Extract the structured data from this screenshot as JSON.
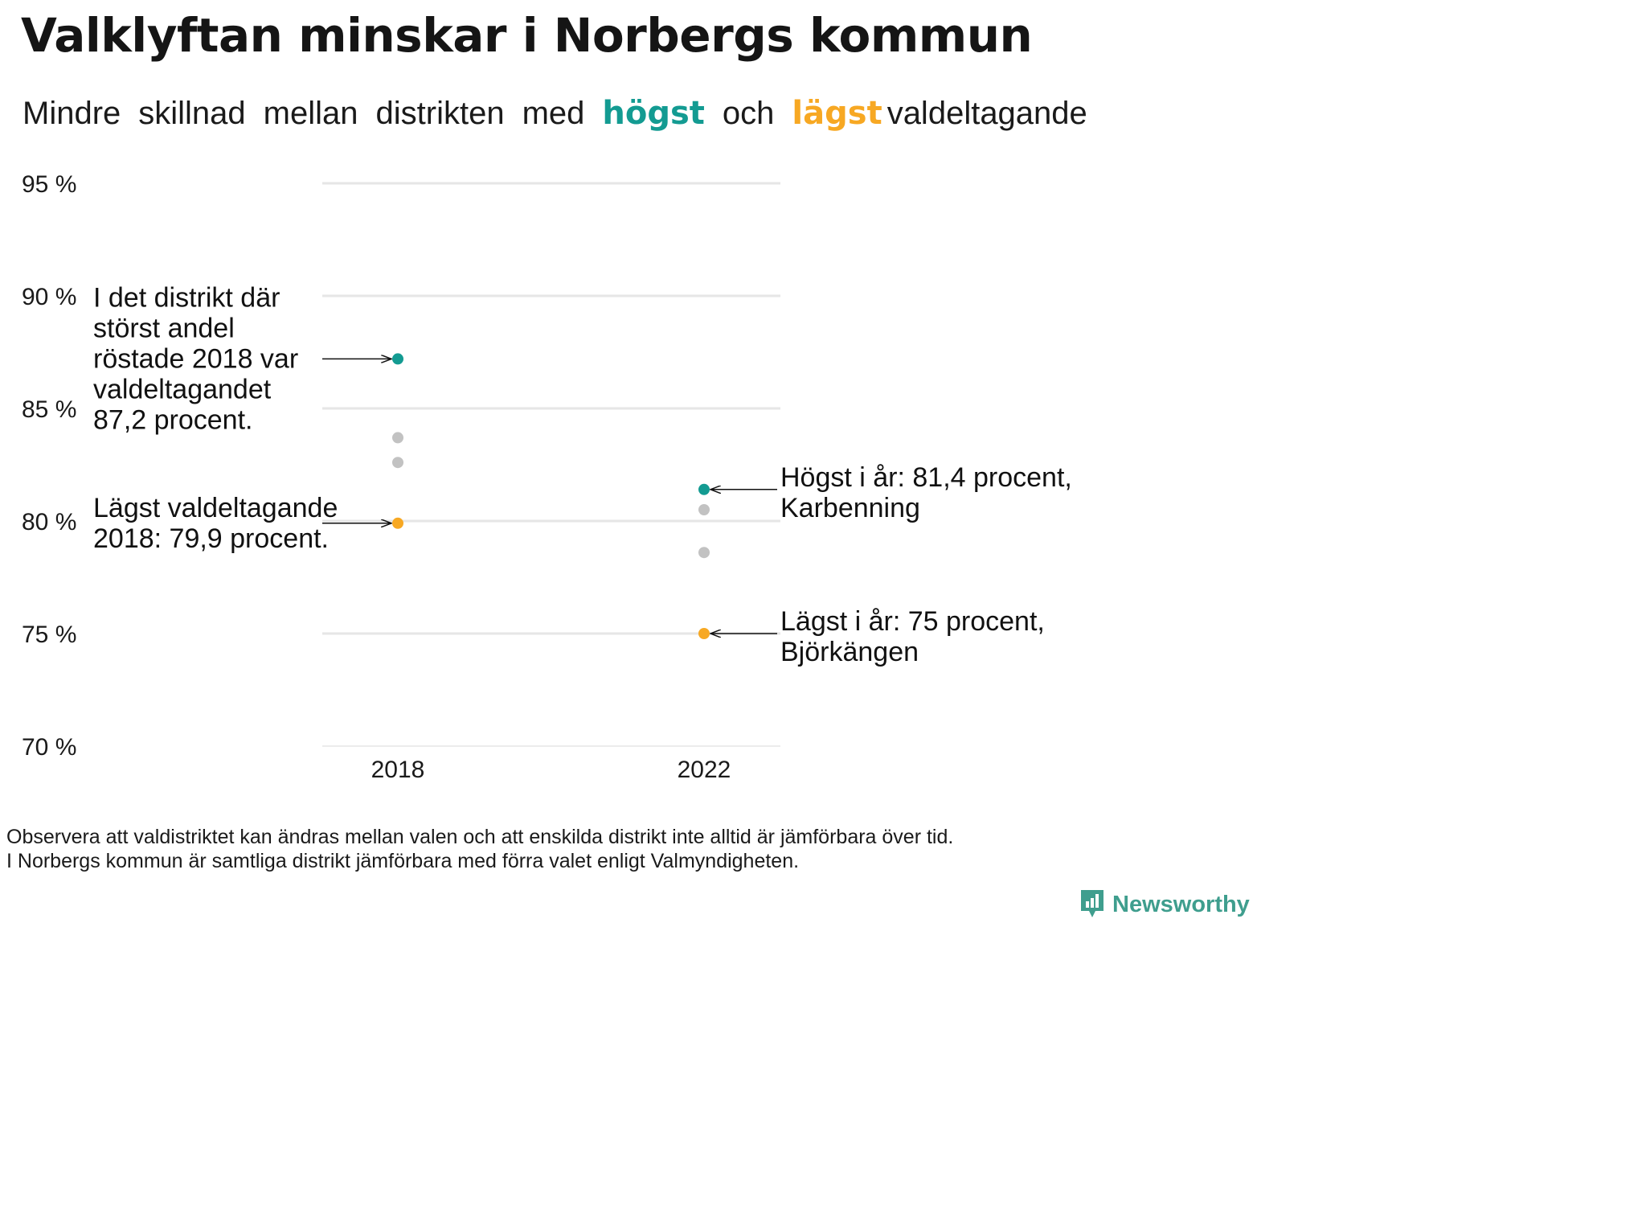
{
  "title": "Valklyftan minskar i Norbergs kommun",
  "subtitle": {
    "words_before": [
      "Mindre",
      "skillnad",
      "mellan",
      "distrikten",
      "med"
    ],
    "high_word": "högst",
    "middle_word": "och",
    "low_word": "lägst",
    "end_word": "valdeltagande"
  },
  "colors": {
    "high": "#139b92",
    "low": "#f7a823",
    "other": "#c2c2c2",
    "grid": "#e6e6e6",
    "brand": "#3f9e8e"
  },
  "chart_data": {
    "type": "scatter",
    "title": "Valklyftan minskar i Norbergs kommun",
    "xlabel": "",
    "ylabel": "",
    "x_categories": [
      "2018",
      "2022"
    ],
    "ylim": [
      70,
      95
    ],
    "y_ticks": [
      95,
      90,
      85,
      80,
      75,
      70
    ],
    "y_tick_labels": [
      "95 %",
      "90 %",
      "85 %",
      "80 %",
      "75 %",
      "70 %"
    ],
    "grid": true,
    "points": [
      {
        "x": "2018",
        "y": 87.2,
        "role": "high"
      },
      {
        "x": "2018",
        "y": 83.7,
        "role": "other"
      },
      {
        "x": "2018",
        "y": 82.6,
        "role": "other"
      },
      {
        "x": "2018",
        "y": 79.9,
        "role": "low"
      },
      {
        "x": "2022",
        "y": 81.4,
        "role": "high"
      },
      {
        "x": "2022",
        "y": 80.5,
        "role": "other"
      },
      {
        "x": "2022",
        "y": 78.6,
        "role": "other"
      },
      {
        "x": "2022",
        "y": 75.0,
        "role": "low"
      }
    ],
    "annotations": [
      {
        "name": "annotation-high-2018",
        "x": "2018",
        "y": 87.2,
        "side": "left",
        "lines": [
          "I det distrikt där",
          "störst andel",
          "röstade 2018 var",
          "valdeltagandet",
          "87,2 procent."
        ]
      },
      {
        "name": "annotation-low-2018",
        "x": "2018",
        "y": 79.9,
        "side": "left",
        "lines": [
          "Lägst valdeltagande",
          "2018: 79,9 procent."
        ]
      },
      {
        "name": "annotation-high-2022",
        "x": "2022",
        "y": 81.4,
        "side": "right",
        "lines": [
          "Högst i år: 81,4 procent,",
          "Karbenning"
        ]
      },
      {
        "name": "annotation-low-2022",
        "x": "2022",
        "y": 75.0,
        "side": "right",
        "lines": [
          "Lägst i år: 75 procent,",
          "Björkängen"
        ]
      }
    ]
  },
  "footnote": {
    "line1": "Observera att valdistriktet kan ändras mellan valen och att enskilda distrikt inte alltid är jämförbara över tid.",
    "line2": "I Norbergs kommun är samtliga distrikt jämförbara med förra valet enligt Valmyndigheten."
  },
  "brand": {
    "name": "Newsworthy",
    "icon": "newsworthy-logo-icon"
  }
}
